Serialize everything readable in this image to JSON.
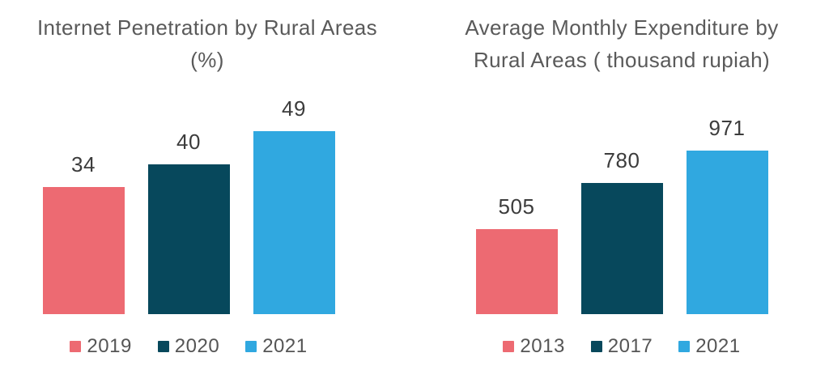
{
  "page": {
    "background_color": "#ffffff",
    "text_colors": {
      "title": "#5a5a5a",
      "data_label": "#3c3c3c",
      "legend": "#555555"
    }
  },
  "chart_data": [
    {
      "type": "bar",
      "title": "Internet Penetration by Rural Areas (%)",
      "title_lines": [
        "Internet Penetration by Rural Areas",
        "(%)"
      ],
      "categories": [
        "2019",
        "2020",
        "2021"
      ],
      "values": [
        34,
        40,
        49
      ],
      "data_labels": [
        "34",
        "40",
        "49"
      ],
      "colors": [
        "#ED6A72",
        "#07485C",
        "#30A8E0"
      ],
      "xlabel": "",
      "ylabel": "",
      "ylim": [
        0,
        52
      ],
      "grid": false,
      "axes_visible": false,
      "legend_position": "bottom",
      "legend": [
        {
          "label": "2019",
          "color": "#ED6A72"
        },
        {
          "label": "2020",
          "color": "#07485C"
        },
        {
          "label": "2021",
          "color": "#30A8E0"
        }
      ]
    },
    {
      "type": "bar",
      "title": "Average Monthly Expenditure by Rural Areas ( thousand rupiah)",
      "title_lines": [
        "Average Monthly Expenditure by",
        "Rural Areas ( thousand rupiah)"
      ],
      "categories": [
        "2013",
        "2017",
        "2021"
      ],
      "values": [
        505,
        780,
        971
      ],
      "data_labels": [
        "505",
        "780",
        "971"
      ],
      "colors": [
        "#ED6A72",
        "#07485C",
        "#30A8E0"
      ],
      "xlabel": "",
      "ylabel": "",
      "ylim": [
        0,
        1154
      ],
      "grid": false,
      "axes_visible": false,
      "legend_position": "bottom",
      "legend": [
        {
          "label": "2013",
          "color": "#ED6A72"
        },
        {
          "label": "2017",
          "color": "#07485C"
        },
        {
          "label": "2021",
          "color": "#30A8E0"
        }
      ]
    }
  ]
}
